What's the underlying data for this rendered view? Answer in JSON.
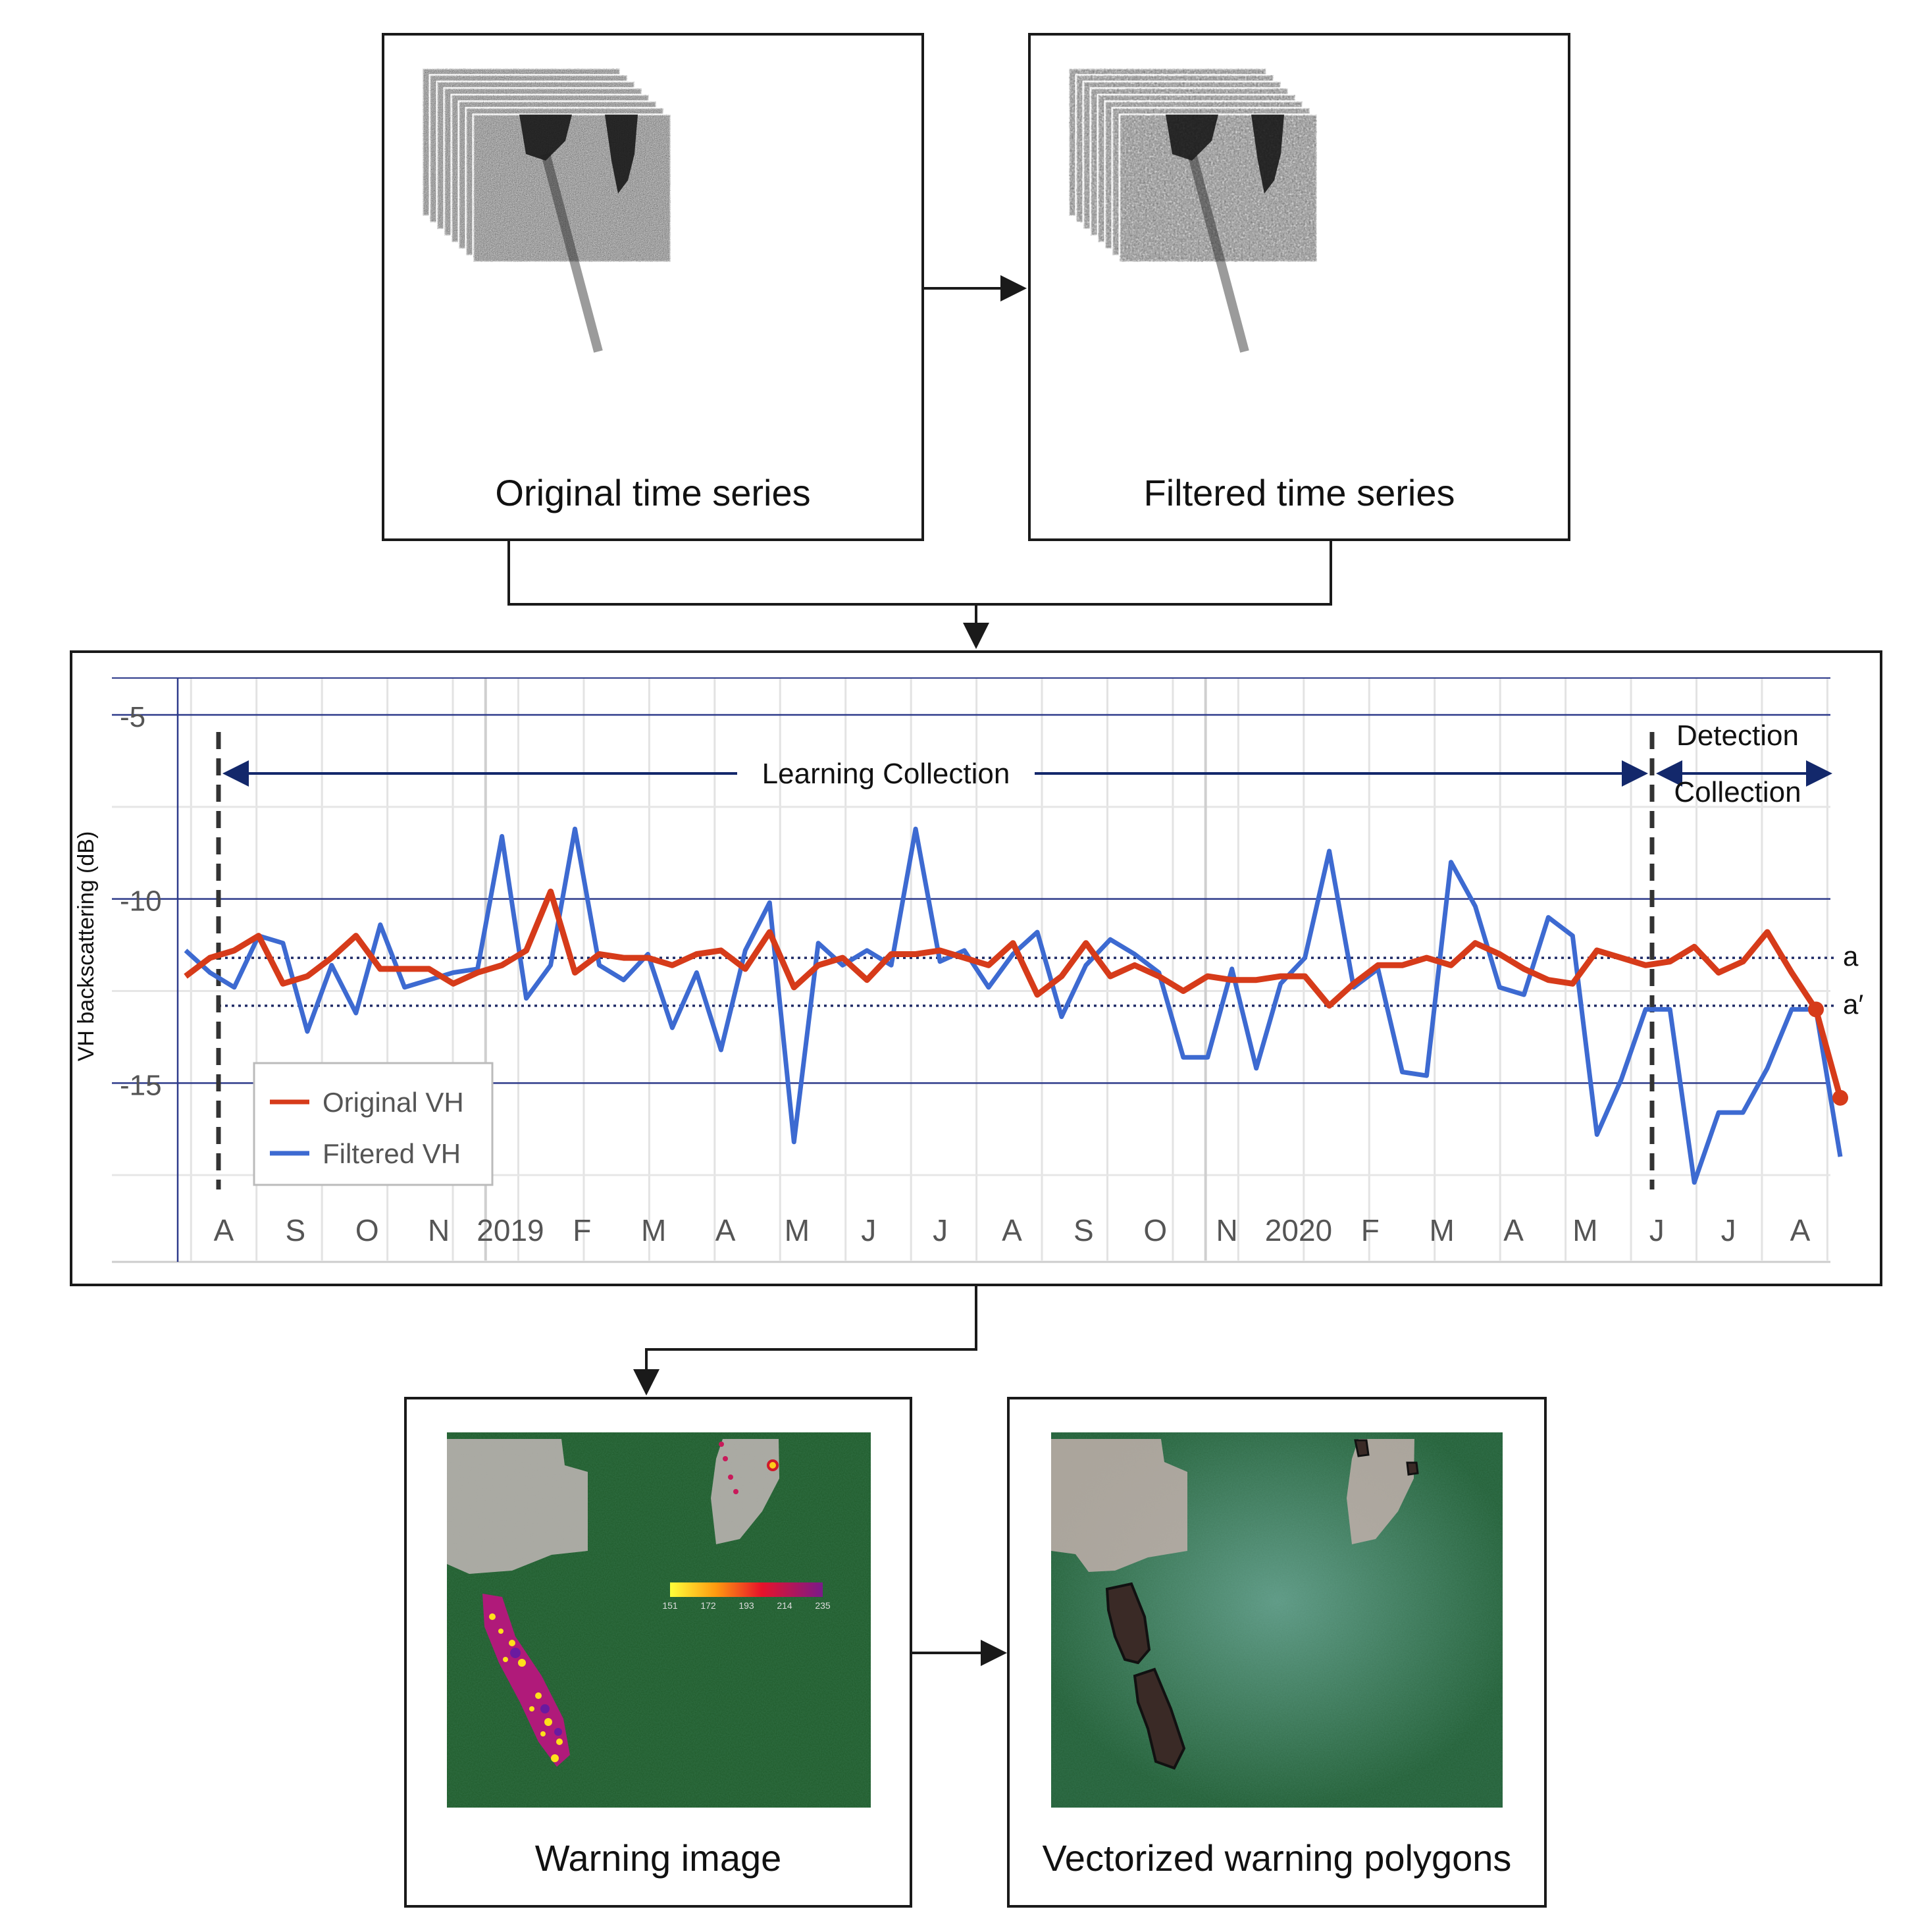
{
  "panels": {
    "original": {
      "caption": "Original time series"
    },
    "filtered": {
      "caption": "Filtered time series"
    },
    "warning": {
      "caption": "Warning image"
    },
    "vectorized": {
      "caption": "Vectorized warning polygons"
    }
  },
  "colorbar": {
    "ticks": [
      "151",
      "172",
      "193",
      "214",
      "235"
    ]
  },
  "chart_data": {
    "type": "line",
    "ylabel": "VH backscattering (dB)",
    "ylim": [
      -20,
      -4
    ],
    "y_ticks": [
      -5,
      -10,
      -15
    ],
    "x_tick_labels": [
      "A",
      "S",
      "O",
      "N",
      "2019",
      "F",
      "M",
      "A",
      "M",
      "J",
      "J",
      "A",
      "S",
      "O",
      "N",
      "2020",
      "F",
      "M",
      "A",
      "M",
      "J",
      "J",
      "A"
    ],
    "series": [
      {
        "name": "Original VH",
        "color": "#d63b1a",
        "x": [
          0,
          1,
          2,
          3,
          4,
          5,
          6,
          7,
          8,
          9,
          10,
          11,
          12,
          13,
          14,
          15,
          16,
          17,
          18,
          19,
          20,
          21,
          22,
          23,
          24,
          25,
          26,
          27,
          28,
          29,
          30,
          31,
          32,
          33,
          34,
          35,
          36,
          37,
          38,
          39,
          40,
          41,
          42,
          43,
          44,
          45,
          46,
          47,
          48,
          49,
          50,
          51,
          52,
          53,
          54,
          55,
          56,
          57,
          58,
          59,
          60,
          61,
          62,
          63,
          64,
          65,
          66,
          67,
          68
        ],
        "values": [
          -12.1,
          -11.6,
          -11.4,
          -11.0,
          -12.3,
          -12.1,
          -11.6,
          -11.0,
          -11.9,
          -11.9,
          -11.9,
          -12.3,
          -12.0,
          -11.8,
          -11.4,
          -9.8,
          -12.0,
          -11.5,
          -11.6,
          -11.6,
          -11.8,
          -11.5,
          -11.4,
          -11.9,
          -10.9,
          -12.4,
          -11.8,
          -11.6,
          -12.2,
          -11.5,
          -11.5,
          -11.4,
          -11.6,
          -11.8,
          -11.2,
          -12.6,
          -12.1,
          -11.2,
          -12.1,
          -11.8,
          -12.1,
          -12.5,
          -12.1,
          -12.2,
          -12.2,
          -12.1,
          -12.1,
          -12.9,
          -12.3,
          -11.8,
          -11.8,
          -11.6,
          -11.8,
          -11.2,
          -11.5,
          -11.9,
          -12.2,
          -12.3,
          -11.4,
          -11.6,
          -11.8,
          -11.7,
          -11.3,
          -12.0,
          -11.7,
          -10.9,
          -12.0,
          -13.0,
          -15.4
        ]
      },
      {
        "name": "Filtered VH",
        "color": "#3d6ad1",
        "x": [
          0,
          1,
          2,
          3,
          4,
          5,
          6,
          7,
          8,
          9,
          10,
          11,
          12,
          13,
          14,
          15,
          16,
          17,
          18,
          19,
          20,
          21,
          22,
          23,
          24,
          25,
          26,
          27,
          28,
          29,
          30,
          31,
          32,
          33,
          34,
          35,
          36,
          37,
          38,
          39,
          40,
          41,
          42,
          43,
          44,
          45,
          46,
          47,
          48,
          49,
          50,
          51,
          52,
          53,
          54,
          55,
          56,
          57,
          58,
          59,
          60,
          61,
          62,
          63,
          64,
          65,
          66,
          67,
          68
        ],
        "values": [
          -11.4,
          -12.0,
          -12.4,
          -11.0,
          -11.2,
          -13.6,
          -11.8,
          -13.1,
          -10.7,
          -12.4,
          -12.2,
          -12.0,
          -11.9,
          -8.3,
          -12.7,
          -11.8,
          -8.1,
          -11.8,
          -12.2,
          -11.5,
          -13.5,
          -12.0,
          -14.1,
          -11.4,
          -10.1,
          -16.6,
          -11.2,
          -11.8,
          -11.4,
          -11.8,
          -8.1,
          -11.7,
          -11.4,
          -12.4,
          -11.5,
          -10.9,
          -13.2,
          -11.8,
          -11.1,
          -11.5,
          -12.0,
          -14.3,
          -14.3,
          -11.9,
          -14.6,
          -12.3,
          -11.6,
          -8.7,
          -12.4,
          -11.9,
          -14.7,
          -14.8,
          -9.0,
          -10.2,
          -12.4,
          -12.6,
          -10.5,
          -11.0,
          -16.4,
          -14.9,
          -13.0,
          -13.0,
          -17.7,
          -15.8,
          -15.8,
          -14.6,
          -13.0,
          -13.0,
          -17.0
        ]
      }
    ],
    "thresholds": [
      {
        "label": "a",
        "value": -11.6
      },
      {
        "label": "a′",
        "value": -12.9
      }
    ],
    "annotations": {
      "learning": "Learning Collection",
      "detection_line1": "Detection",
      "detection_line2": "Collection"
    },
    "legend_position": "bottom-left"
  }
}
